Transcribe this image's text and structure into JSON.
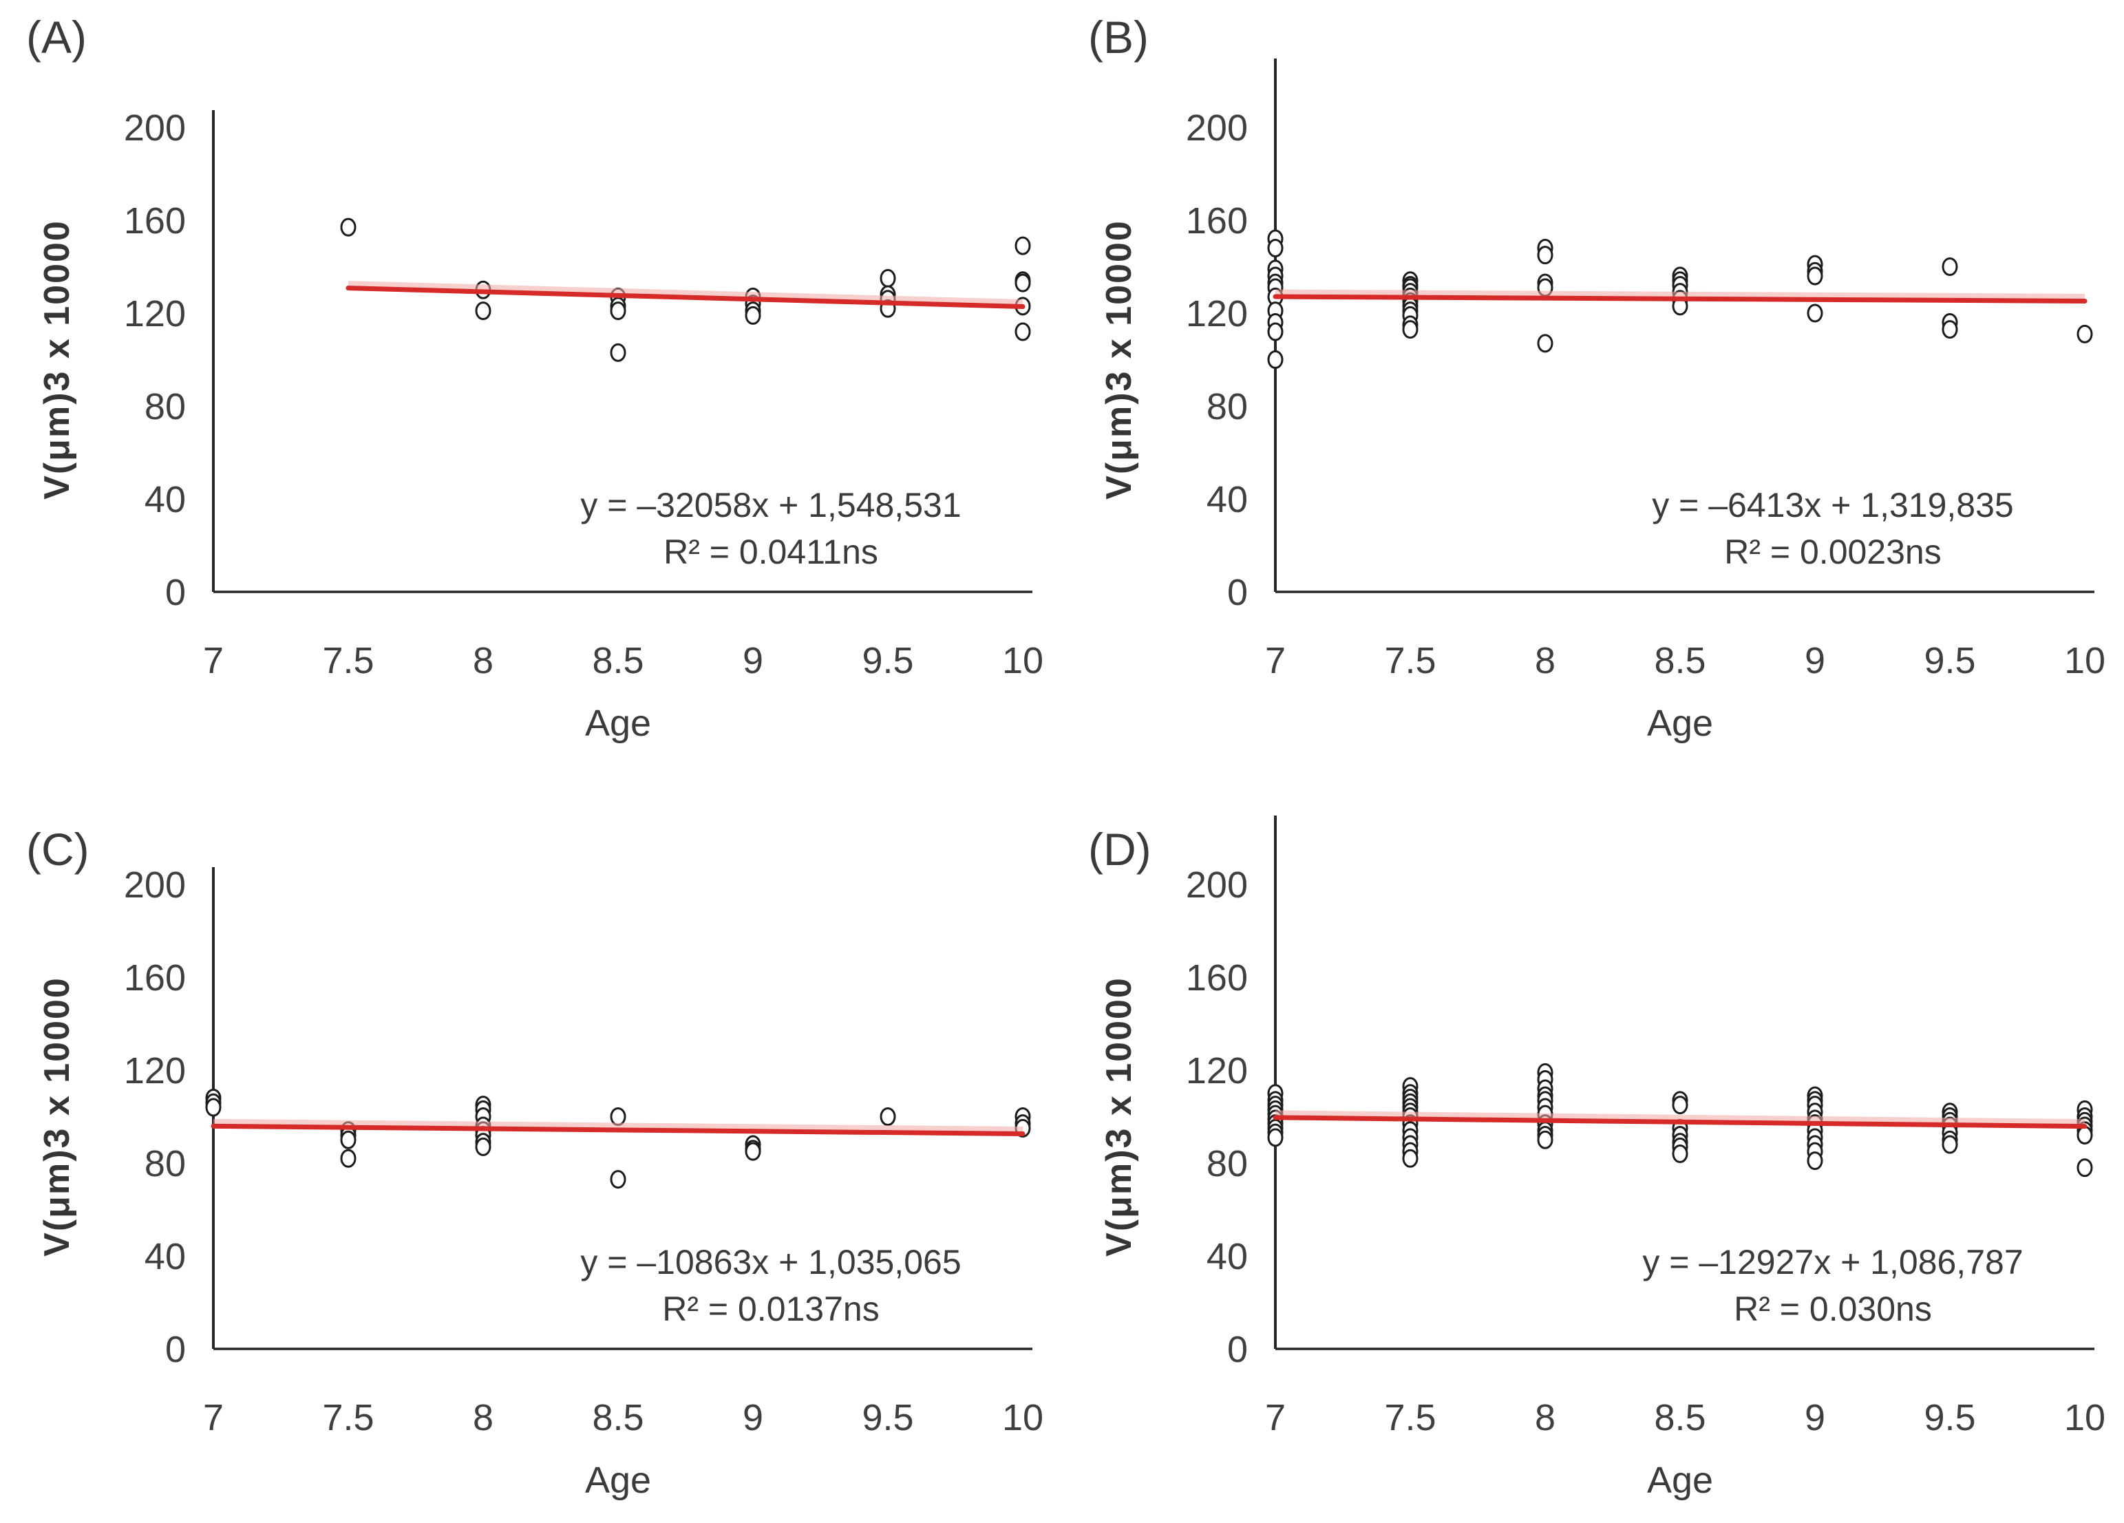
{
  "figure": {
    "colors": {
      "trendline": "#d62a28",
      "trendline_halo": "#f2a9a4",
      "marker_stroke": "#1c1c1c",
      "marker_fill": "#ffffff",
      "axis": "#262626",
      "text": "#3f3f3f"
    }
  },
  "chart_data": [
    {
      "type": "scatter",
      "panel_label": "(A)",
      "xlabel": "Age",
      "ylabel": "V(μm)3 x 10000",
      "xlim": [
        7,
        10
      ],
      "ylim": [
        0,
        200
      ],
      "x_ticks": [
        "7",
        "7.5",
        "8",
        "8.5",
        "9",
        "9.5",
        "10"
      ],
      "x_tick_values": [
        7,
        7.5,
        8,
        8.5,
        9,
        9.5,
        10
      ],
      "y_ticks": [
        "0",
        "40",
        "80",
        "120",
        "160",
        "200"
      ],
      "y_tick_values": [
        0,
        40,
        80,
        120,
        160,
        200
      ],
      "equation": "y = –32058x + 1,548,531",
      "r_squared": "R² = 0.0411ns",
      "legend": "none",
      "grid": false,
      "trendline": {
        "x_start": 7.5,
        "y_start": 130.8,
        "x_end": 10,
        "y_end": 122.8
      },
      "points": [
        [
          7.5,
          157
        ],
        [
          8,
          130
        ],
        [
          8,
          121
        ],
        [
          8.5,
          127
        ],
        [
          8.5,
          123
        ],
        [
          8.5,
          121
        ],
        [
          8.5,
          103
        ],
        [
          9,
          127
        ],
        [
          9,
          124
        ],
        [
          9,
          121
        ],
        [
          9,
          119
        ],
        [
          9.5,
          135
        ],
        [
          9.5,
          128
        ],
        [
          9.5,
          126
        ],
        [
          9.5,
          122
        ],
        [
          10,
          149
        ],
        [
          10,
          134
        ],
        [
          10,
          133
        ],
        [
          10,
          123
        ],
        [
          10,
          112
        ]
      ]
    },
    {
      "type": "scatter",
      "panel_label": "(B)",
      "xlabel": "Age",
      "ylabel": "V(μm)3 x 10000",
      "xlim": [
        7,
        10
      ],
      "ylim": [
        0,
        200
      ],
      "x_ticks": [
        "7",
        "7.5",
        "8",
        "8.5",
        "9",
        "9.5",
        "10"
      ],
      "x_tick_values": [
        7,
        7.5,
        8,
        8.5,
        9,
        9.5,
        10
      ],
      "y_ticks": [
        "0",
        "40",
        "80",
        "120",
        "160",
        "200"
      ],
      "y_tick_values": [
        0,
        40,
        80,
        120,
        160,
        200
      ],
      "equation": "y = –6413x + 1,319,835",
      "r_squared": "R² = 0.0023ns",
      "legend": "none",
      "grid": false,
      "trendline": {
        "x_start": 7,
        "y_start": 127.1,
        "x_end": 10,
        "y_end": 125.2
      },
      "points": [
        [
          7,
          152
        ],
        [
          7,
          148
        ],
        [
          7,
          139
        ],
        [
          7,
          136
        ],
        [
          7,
          133
        ],
        [
          7,
          131
        ],
        [
          7,
          127
        ],
        [
          7,
          121
        ],
        [
          7,
          116
        ],
        [
          7,
          112
        ],
        [
          7,
          100
        ],
        [
          7.5,
          134
        ],
        [
          7.5,
          132
        ],
        [
          7.5,
          131
        ],
        [
          7.5,
          129
        ],
        [
          7.5,
          127
        ],
        [
          7.5,
          125
        ],
        [
          7.5,
          123
        ],
        [
          7.5,
          121
        ],
        [
          7.5,
          119
        ],
        [
          7.5,
          115
        ],
        [
          7.5,
          113
        ],
        [
          8,
          148
        ],
        [
          8,
          145
        ],
        [
          8,
          133
        ],
        [
          8,
          131
        ],
        [
          8,
          107
        ],
        [
          8.5,
          136
        ],
        [
          8.5,
          134
        ],
        [
          8.5,
          132
        ],
        [
          8.5,
          129
        ],
        [
          8.5,
          126
        ],
        [
          8.5,
          123
        ],
        [
          9,
          141
        ],
        [
          9,
          138
        ],
        [
          9,
          136
        ],
        [
          9,
          120
        ],
        [
          9.5,
          140
        ],
        [
          9.5,
          116
        ],
        [
          9.5,
          113
        ],
        [
          10,
          111
        ]
      ]
    },
    {
      "type": "scatter",
      "panel_label": "(C)",
      "xlabel": "Age",
      "ylabel": "V(μm)3 x 10000",
      "xlim": [
        7,
        10
      ],
      "ylim": [
        0,
        200
      ],
      "x_ticks": [
        "7",
        "7.5",
        "8",
        "8.5",
        "9",
        "9.5",
        "10"
      ],
      "x_tick_values": [
        7,
        7.5,
        8,
        8.5,
        9,
        9.5,
        10
      ],
      "y_ticks": [
        "0",
        "40",
        "80",
        "120",
        "160",
        "200"
      ],
      "y_tick_values": [
        0,
        40,
        80,
        120,
        160,
        200
      ],
      "equation": "y = –10863x + 1,035,065",
      "r_squared": "R² = 0.0137ns",
      "legend": "none",
      "grid": false,
      "trendline": {
        "x_start": 7,
        "y_start": 95.9,
        "x_end": 10,
        "y_end": 92.6
      },
      "points": [
        [
          7,
          108
        ],
        [
          7,
          106
        ],
        [
          7,
          104
        ],
        [
          7.5,
          94
        ],
        [
          7.5,
          92
        ],
        [
          7.5,
          90
        ],
        [
          7.5,
          82
        ],
        [
          8,
          105
        ],
        [
          8,
          103
        ],
        [
          8,
          100
        ],
        [
          8,
          96
        ],
        [
          8,
          94
        ],
        [
          8,
          92
        ],
        [
          8,
          89
        ],
        [
          8,
          87
        ],
        [
          8.5,
          100
        ],
        [
          8.5,
          73
        ],
        [
          9,
          88
        ],
        [
          9,
          86
        ],
        [
          9,
          85
        ],
        [
          9.5,
          100
        ],
        [
          10,
          100
        ],
        [
          10,
          97
        ],
        [
          10,
          95
        ]
      ]
    },
    {
      "type": "scatter",
      "panel_label": "(D)",
      "xlabel": "Age",
      "ylabel": "V(μm)3 x 10000",
      "xlim": [
        7,
        10
      ],
      "ylim": [
        0,
        200
      ],
      "x_ticks": [
        "7",
        "7.5",
        "8",
        "8.5",
        "9",
        "9.5",
        "10"
      ],
      "x_tick_values": [
        7,
        7.5,
        8,
        8.5,
        9,
        9.5,
        10
      ],
      "y_ticks": [
        "0",
        "40",
        "80",
        "120",
        "160",
        "200"
      ],
      "y_tick_values": [
        0,
        40,
        80,
        120,
        160,
        200
      ],
      "equation": "y = –12927x + 1,086,787",
      "r_squared": "R² = 0.030ns",
      "legend": "none",
      "grid": false,
      "trendline": {
        "x_start": 7,
        "y_start": 99.6,
        "x_end": 10,
        "y_end": 95.8
      },
      "points": [
        [
          7,
          110
        ],
        [
          7,
          107
        ],
        [
          7,
          105
        ],
        [
          7,
          103
        ],
        [
          7,
          101
        ],
        [
          7,
          99
        ],
        [
          7,
          97
        ],
        [
          7,
          95
        ],
        [
          7,
          93
        ],
        [
          7,
          91
        ],
        [
          7.5,
          113
        ],
        [
          7.5,
          110
        ],
        [
          7.5,
          108
        ],
        [
          7.5,
          106
        ],
        [
          7.5,
          104
        ],
        [
          7.5,
          102
        ],
        [
          7.5,
          100
        ],
        [
          7.5,
          97
        ],
        [
          7.5,
          94
        ],
        [
          7.5,
          91
        ],
        [
          7.5,
          88
        ],
        [
          7.5,
          85
        ],
        [
          7.5,
          82
        ],
        [
          8,
          119
        ],
        [
          8,
          116
        ],
        [
          8,
          112
        ],
        [
          8,
          109
        ],
        [
          8,
          107
        ],
        [
          8,
          104
        ],
        [
          8,
          101
        ],
        [
          8,
          97
        ],
        [
          8,
          94
        ],
        [
          8,
          92
        ],
        [
          8,
          90
        ],
        [
          8.5,
          107
        ],
        [
          8.5,
          105
        ],
        [
          8.5,
          95
        ],
        [
          8.5,
          92
        ],
        [
          8.5,
          89
        ],
        [
          8.5,
          87
        ],
        [
          8.5,
          84
        ],
        [
          9,
          109
        ],
        [
          9,
          107
        ],
        [
          9,
          105
        ],
        [
          9,
          102
        ],
        [
          9,
          99
        ],
        [
          9,
          97
        ],
        [
          9,
          94
        ],
        [
          9,
          91
        ],
        [
          9,
          88
        ],
        [
          9,
          85
        ],
        [
          9,
          81
        ],
        [
          9.5,
          102
        ],
        [
          9.5,
          100
        ],
        [
          9.5,
          98
        ],
        [
          9.5,
          96
        ],
        [
          9.5,
          93
        ],
        [
          9.5,
          90
        ],
        [
          9.5,
          88
        ],
        [
          10,
          103
        ],
        [
          10,
          100
        ],
        [
          10,
          98
        ],
        [
          10,
          96
        ],
        [
          10,
          94
        ],
        [
          10,
          92
        ],
        [
          10,
          78
        ]
      ]
    }
  ]
}
